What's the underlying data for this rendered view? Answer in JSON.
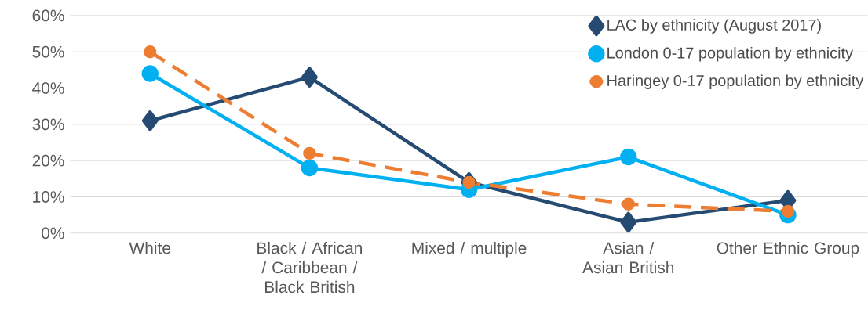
{
  "chart_data": {
    "type": "line",
    "categories": [
      "White",
      "Black / African / Caribbean / Black British",
      "Mixed / multiple",
      "Asian / Asian British",
      "Other Ethnic Group"
    ],
    "series": [
      {
        "name": "LAC by ethnicity (August 2017)",
        "color": "#264b73",
        "marker": "diamond",
        "line_style": "solid",
        "values": [
          31,
          43,
          14,
          3,
          9
        ]
      },
      {
        "name": "London 0-17 population by ethnicity",
        "color": "#00b0f0",
        "marker": "circle",
        "line_style": "solid",
        "values": [
          44,
          18,
          12,
          21,
          5
        ]
      },
      {
        "name": "Haringey 0-17 population by ethnicity",
        "color": "#ed7d31",
        "marker": "circle",
        "line_style": "dashed",
        "values": [
          50,
          22,
          14,
          8,
          6
        ]
      }
    ],
    "ylim": [
      0,
      60
    ],
    "yticks": [
      {
        "value": 0,
        "label": "0%"
      },
      {
        "value": 10,
        "label": "10%"
      },
      {
        "value": 20,
        "label": "20%"
      },
      {
        "value": 30,
        "label": "30%"
      },
      {
        "value": 40,
        "label": "40%"
      },
      {
        "value": 50,
        "label": "50%"
      },
      {
        "value": 60,
        "label": "60%"
      }
    ],
    "grid": "y",
    "legend": "top right"
  }
}
